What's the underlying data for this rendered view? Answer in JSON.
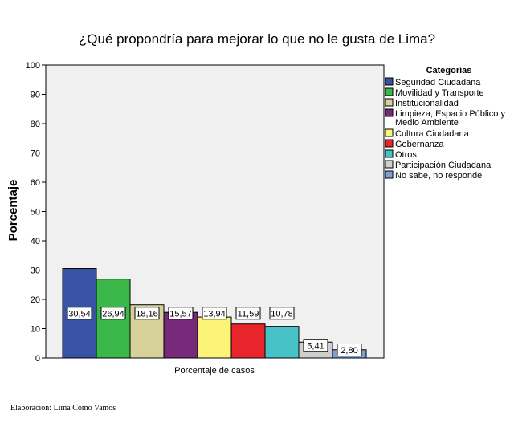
{
  "chart_data": {
    "type": "bar",
    "title": "¿Qué propondría para mejorar lo que no le gusta de Lima?",
    "xlabel": "Porcentaje de casos",
    "ylabel": "Porcentaje",
    "ylim": [
      0,
      100
    ],
    "yticks": [
      "0",
      "10",
      "20",
      "30",
      "40",
      "50",
      "60",
      "70",
      "80",
      "90",
      "100"
    ],
    "legend_title": "Categorías",
    "legend_position": "right",
    "grid": false,
    "series": [
      {
        "name": "Seguridad Ciudadana",
        "value": 30.54,
        "label": "30,54",
        "color": "#3953a4"
      },
      {
        "name": "Movilidad y Transporte",
        "value": 26.94,
        "label": "26,94",
        "color": "#3cb84a"
      },
      {
        "name": "Institucionalidad",
        "value": 18.16,
        "label": "18,16",
        "color": "#d6d29a"
      },
      {
        "name": "Limpieza, Espacio Público y Medio Ambiente",
        "legend_lines": [
          "Limpieza, Espacio Público y",
          "Medio Ambiente"
        ],
        "value": 15.57,
        "label": "15,57",
        "color": "#762a79"
      },
      {
        "name": "Cultura Ciudadana",
        "value": 13.94,
        "label": "13,94",
        "color": "#fbf478"
      },
      {
        "name": "Gobernanza",
        "value": 11.59,
        "label": "11,59",
        "color": "#e8252b"
      },
      {
        "name": "Otros",
        "value": 10.78,
        "label": "10,78",
        "color": "#47c2c6"
      },
      {
        "name": "Participación Ciudadana",
        "value": 5.41,
        "label": "5,41",
        "color": "#cfcfcf"
      },
      {
        "name": "No sabe, no responde",
        "value": 2.8,
        "label": "2,80",
        "color": "#7ea1d2"
      }
    ]
  },
  "source_note": "Elaboración: Lima Cómo Vamos"
}
